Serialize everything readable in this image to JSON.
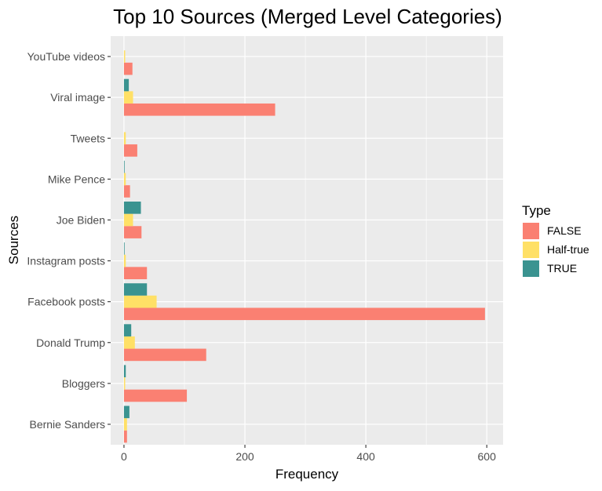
{
  "chart_data": {
    "type": "bar",
    "orientation": "horizontal",
    "title": "Top 10 Sources (Merged Level Categories)",
    "xlabel": "Frequency",
    "ylabel": "Sources",
    "xlim": [
      -22,
      627
    ],
    "xticks": [
      0,
      200,
      400,
      600
    ],
    "grid": true,
    "legend_position": "right",
    "legend_title": "Type",
    "categories": [
      "Bernie Sanders",
      "Bloggers",
      "Donald Trump",
      "Facebook posts",
      "Instagram posts",
      "Joe Biden",
      "Mike Pence",
      "Tweets",
      "Viral image",
      "YouTube videos"
    ],
    "series": [
      {
        "name": "FALSE",
        "color": "#FA8072",
        "values": [
          5,
          104,
          136,
          597,
          38,
          29,
          10,
          22,
          250,
          14
        ]
      },
      {
        "name": "Half-true",
        "color": "#FFE066",
        "values": [
          5,
          2,
          18,
          54,
          3,
          15,
          3,
          3,
          15,
          2
        ]
      },
      {
        "name": "TRUE",
        "color": "#3A9390",
        "values": [
          9,
          3,
          12,
          38,
          1,
          28,
          1,
          0,
          8,
          0
        ]
      }
    ]
  }
}
